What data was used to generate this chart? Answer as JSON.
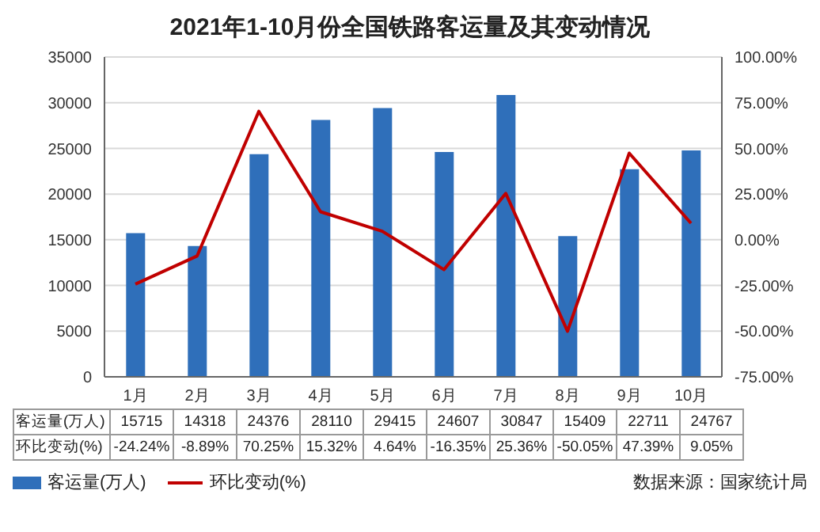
{
  "chart_data": {
    "type": "bar",
    "title": "2021年1-10月份全国铁路客运量及其变动情况",
    "categories": [
      "1月",
      "2月",
      "3月",
      "4月",
      "5月",
      "6月",
      "7月",
      "8月",
      "9月",
      "10月"
    ],
    "series": [
      {
        "name": "客运量(万人)",
        "color": "#2f6fba",
        "values": [
          15715,
          14318,
          24376,
          28110,
          29415,
          24607,
          30847,
          15409,
          22711,
          24767
        ],
        "value_labels": [
          "15715",
          "14318",
          "24376",
          "28110",
          "29415",
          "24607",
          "30847",
          "15409",
          "22711",
          "24767"
        ]
      },
      {
        "name": "环比变动(%)",
        "type": "line",
        "axis": "y2",
        "color": "#c00000",
        "values": [
          -24.24,
          -8.89,
          70.25,
          15.32,
          4.64,
          -16.35,
          25.36,
          -50.05,
          47.39,
          9.05
        ],
        "value_labels": [
          "-24.24%",
          "-8.89%",
          "70.25%",
          "15.32%",
          "4.64%",
          "-16.35%",
          "25.36%",
          "-50.05%",
          "47.39%",
          "9.05%"
        ]
      }
    ],
    "ylim": [
      0,
      35000
    ],
    "yticks": [
      0,
      5000,
      10000,
      15000,
      20000,
      25000,
      30000,
      35000
    ],
    "y2lim": [
      -75,
      100
    ],
    "y2ticks": [
      {
        "value": -75,
        "label": "-75.00%"
      },
      {
        "value": -50,
        "label": "-50.00%"
      },
      {
        "value": -25,
        "label": "-25.00%"
      },
      {
        "value": 0,
        "label": "0.00%"
      },
      {
        "value": 25,
        "label": "25.00%"
      },
      {
        "value": 50,
        "label": "50.00%"
      },
      {
        "value": 75,
        "label": "75.00%"
      },
      {
        "value": 100,
        "label": "100.00%"
      }
    ],
    "grid": "y",
    "legend": "bottom left",
    "marker": "none",
    "line_style": "solid",
    "annotations": [
      "数据来源：国家统计局"
    ]
  }
}
